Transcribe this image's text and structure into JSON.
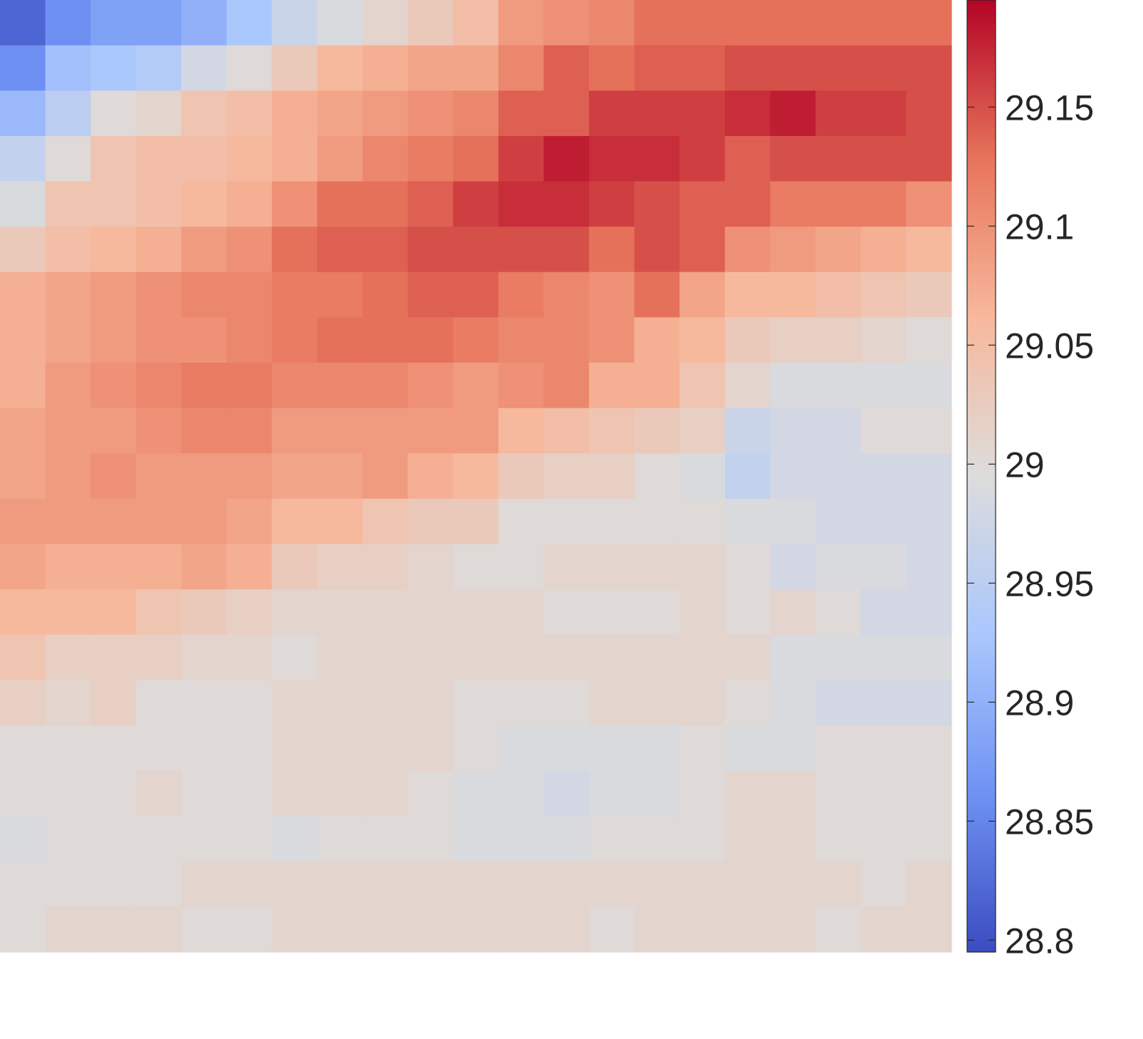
{
  "chart_data": {
    "type": "heatmap",
    "title": "",
    "xlabel": "",
    "ylabel": "",
    "axes_visible": false,
    "rows": 21,
    "cols": 21,
    "colormap": "coolwarm",
    "colormap_stops": [
      "#3b4cc0",
      "#6f92f3",
      "#aac7fd",
      "#dddcdc",
      "#f7b89c",
      "#e7745b",
      "#b40426"
    ],
    "colorbar": {
      "position": "right",
      "range": [
        28.795,
        29.195
      ],
      "ticks": [
        28.8,
        28.85,
        28.9,
        28.95,
        29,
        29.05,
        29.1,
        29.15
      ],
      "tick_labels": [
        "28.8",
        "28.85",
        "28.9",
        "28.95",
        "29",
        "29.05",
        "29.1",
        "29.15"
      ]
    },
    "values": [
      [
        28.82,
        28.86,
        28.88,
        28.88,
        28.9,
        28.93,
        28.97,
        28.99,
        29.01,
        29.03,
        29.05,
        29.09,
        29.1,
        29.11,
        29.13,
        29.13,
        29.13,
        29.13,
        29.13,
        29.13,
        29.13
      ],
      [
        28.86,
        28.92,
        28.93,
        28.94,
        28.98,
        29.0,
        29.03,
        29.06,
        29.07,
        29.08,
        29.08,
        29.11,
        29.14,
        29.13,
        29.14,
        29.14,
        29.15,
        29.15,
        29.15,
        29.15,
        29.15
      ],
      [
        28.91,
        28.95,
        29.0,
        29.01,
        29.04,
        29.05,
        29.07,
        29.08,
        29.09,
        29.1,
        29.11,
        29.14,
        29.14,
        29.16,
        29.16,
        29.16,
        29.17,
        29.18,
        29.16,
        29.16,
        29.15
      ],
      [
        28.96,
        29.0,
        29.04,
        29.05,
        29.05,
        29.06,
        29.07,
        29.09,
        29.11,
        29.12,
        29.13,
        29.16,
        29.18,
        29.17,
        29.17,
        29.16,
        29.14,
        29.15,
        29.15,
        29.15,
        29.15
      ],
      [
        28.99,
        29.04,
        29.04,
        29.05,
        29.06,
        29.07,
        29.1,
        29.13,
        29.13,
        29.14,
        29.16,
        29.17,
        29.17,
        29.16,
        29.15,
        29.14,
        29.14,
        29.12,
        29.12,
        29.12,
        29.1
      ],
      [
        29.03,
        29.05,
        29.06,
        29.07,
        29.09,
        29.1,
        29.13,
        29.14,
        29.14,
        29.15,
        29.15,
        29.15,
        29.15,
        29.13,
        29.15,
        29.14,
        29.1,
        29.09,
        29.08,
        29.07,
        29.06
      ],
      [
        29.07,
        29.08,
        29.09,
        29.1,
        29.11,
        29.11,
        29.12,
        29.12,
        29.13,
        29.14,
        29.14,
        29.12,
        29.11,
        29.1,
        29.13,
        29.08,
        29.06,
        29.06,
        29.05,
        29.04,
        29.03
      ],
      [
        29.07,
        29.08,
        29.09,
        29.1,
        29.1,
        29.11,
        29.12,
        29.13,
        29.13,
        29.13,
        29.12,
        29.11,
        29.11,
        29.1,
        29.07,
        29.06,
        29.03,
        29.02,
        29.02,
        29.01,
        29.0
      ],
      [
        29.07,
        29.09,
        29.1,
        29.11,
        29.12,
        29.12,
        29.11,
        29.11,
        29.11,
        29.1,
        29.09,
        29.1,
        29.11,
        29.07,
        29.07,
        29.04,
        29.01,
        28.99,
        28.99,
        28.99,
        28.99
      ],
      [
        29.08,
        29.09,
        29.09,
        29.1,
        29.11,
        29.11,
        29.09,
        29.09,
        29.09,
        29.09,
        29.09,
        29.06,
        29.05,
        29.04,
        29.03,
        29.02,
        28.97,
        28.98,
        28.98,
        29.0,
        29.0
      ],
      [
        29.08,
        29.09,
        29.1,
        29.09,
        29.09,
        29.09,
        29.08,
        29.08,
        29.09,
        29.07,
        29.06,
        29.03,
        29.02,
        29.02,
        29.0,
        28.99,
        28.96,
        28.98,
        28.98,
        28.98,
        28.98
      ],
      [
        29.09,
        29.09,
        29.09,
        29.09,
        29.09,
        29.08,
        29.06,
        29.06,
        29.04,
        29.03,
        29.03,
        29.0,
        29.0,
        29.0,
        29.0,
        29.0,
        28.99,
        28.99,
        28.98,
        28.98,
        28.98
      ],
      [
        29.08,
        29.07,
        29.07,
        29.07,
        29.08,
        29.07,
        29.03,
        29.02,
        29.02,
        29.01,
        29.0,
        29.0,
        29.01,
        29.01,
        29.01,
        29.01,
        29.0,
        28.98,
        28.99,
        28.99,
        28.98
      ],
      [
        29.06,
        29.06,
        29.06,
        29.04,
        29.03,
        29.02,
        29.01,
        29.01,
        29.01,
        29.01,
        29.01,
        29.01,
        29.0,
        29.0,
        29.0,
        29.01,
        29.0,
        29.01,
        29.0,
        28.98,
        28.98
      ],
      [
        29.04,
        29.02,
        29.02,
        29.02,
        29.01,
        29.01,
        29.0,
        29.01,
        29.01,
        29.01,
        29.01,
        29.01,
        29.01,
        29.01,
        29.01,
        29.01,
        29.01,
        28.99,
        28.99,
        28.99,
        28.99
      ],
      [
        29.02,
        29.01,
        29.02,
        29.0,
        29.0,
        29.0,
        29.01,
        29.01,
        29.01,
        29.01,
        29.0,
        29.0,
        29.0,
        29.01,
        29.01,
        29.01,
        29.0,
        28.99,
        28.98,
        28.98,
        28.98
      ],
      [
        29.0,
        29.0,
        29.0,
        29.0,
        29.0,
        29.0,
        29.01,
        29.01,
        29.01,
        29.01,
        29.0,
        28.99,
        28.99,
        28.99,
        28.99,
        29.0,
        28.99,
        28.99,
        29.0,
        29.0,
        29.0
      ],
      [
        29.0,
        29.0,
        29.0,
        29.01,
        29.0,
        29.0,
        29.01,
        29.01,
        29.01,
        29.0,
        28.99,
        28.99,
        28.98,
        28.99,
        28.99,
        29.0,
        29.01,
        29.01,
        29.0,
        29.0,
        29.0
      ],
      [
        28.99,
        29.0,
        29.0,
        29.0,
        29.0,
        29.0,
        28.99,
        29.0,
        29.0,
        29.0,
        28.99,
        28.99,
        28.99,
        29.0,
        29.0,
        29.0,
        29.01,
        29.01,
        29.0,
        29.0,
        29.0
      ],
      [
        29.0,
        29.0,
        29.0,
        29.0,
        29.01,
        29.01,
        29.01,
        29.01,
        29.01,
        29.01,
        29.01,
        29.01,
        29.01,
        29.01,
        29.01,
        29.01,
        29.01,
        29.01,
        29.01,
        29.0,
        29.01
      ],
      [
        29.0,
        29.01,
        29.01,
        29.01,
        29.0,
        29.0,
        29.01,
        29.01,
        29.01,
        29.01,
        29.01,
        29.01,
        29.01,
        29.0,
        29.01,
        29.01,
        29.01,
        29.01,
        29.0,
        29.01,
        29.01
      ]
    ]
  }
}
